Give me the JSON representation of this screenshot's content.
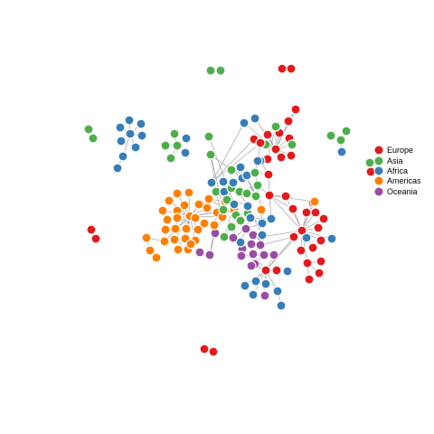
{
  "legend": {
    "items": [
      {
        "label": "Europe",
        "color": "#e31a1c"
      },
      {
        "label": "Asia",
        "color": "#4daf4a"
      },
      {
        "label": "Africa",
        "color": "#377eb8"
      },
      {
        "label": "Americas",
        "color": "#ff7f00"
      },
      {
        "label": "Oceania",
        "color": "#984ea3"
      }
    ]
  }
}
